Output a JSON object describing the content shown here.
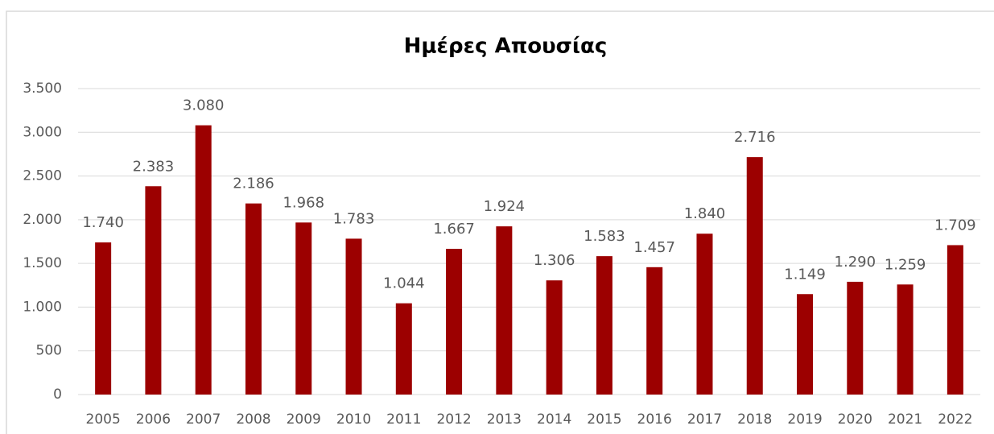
{
  "chart_data": {
    "type": "bar",
    "title": "Ημέρες Απουσίας",
    "categories": [
      "2005",
      "2006",
      "2007",
      "2008",
      "2009",
      "2010",
      "2011",
      "2012",
      "2013",
      "2014",
      "2015",
      "2016",
      "2017",
      "2018",
      "2019",
      "2020",
      "2021",
      "2022"
    ],
    "values": [
      1740,
      2383,
      3080,
      2186,
      1968,
      1783,
      1044,
      1667,
      1924,
      1306,
      1583,
      1457,
      1840,
      2716,
      1149,
      1290,
      1259,
      1709
    ],
    "value_labels": [
      "1.740",
      "2.383",
      "3.080",
      "2.186",
      "1.968",
      "1.783",
      "1.044",
      "1.667",
      "1.924",
      "1.306",
      "1.583",
      "1.457",
      "1.840",
      "2.716",
      "1.149",
      "1.290",
      "1.259",
      "1.709"
    ],
    "color": "#9c0000",
    "ylim": [
      0,
      3500
    ],
    "yticks": [
      0,
      500,
      {
        "value": 1000,
        "label": "1.000"
      },
      {
        "value": 1500,
        "label": "1.500"
      },
      {
        "value": 2000,
        "label": "2.000"
      },
      {
        "value": 2500,
        "label": "2.500"
      },
      {
        "value": 3000,
        "label": "3.000"
      },
      {
        "value": 3500,
        "label": "3.500"
      }
    ],
    "grid": true
  }
}
